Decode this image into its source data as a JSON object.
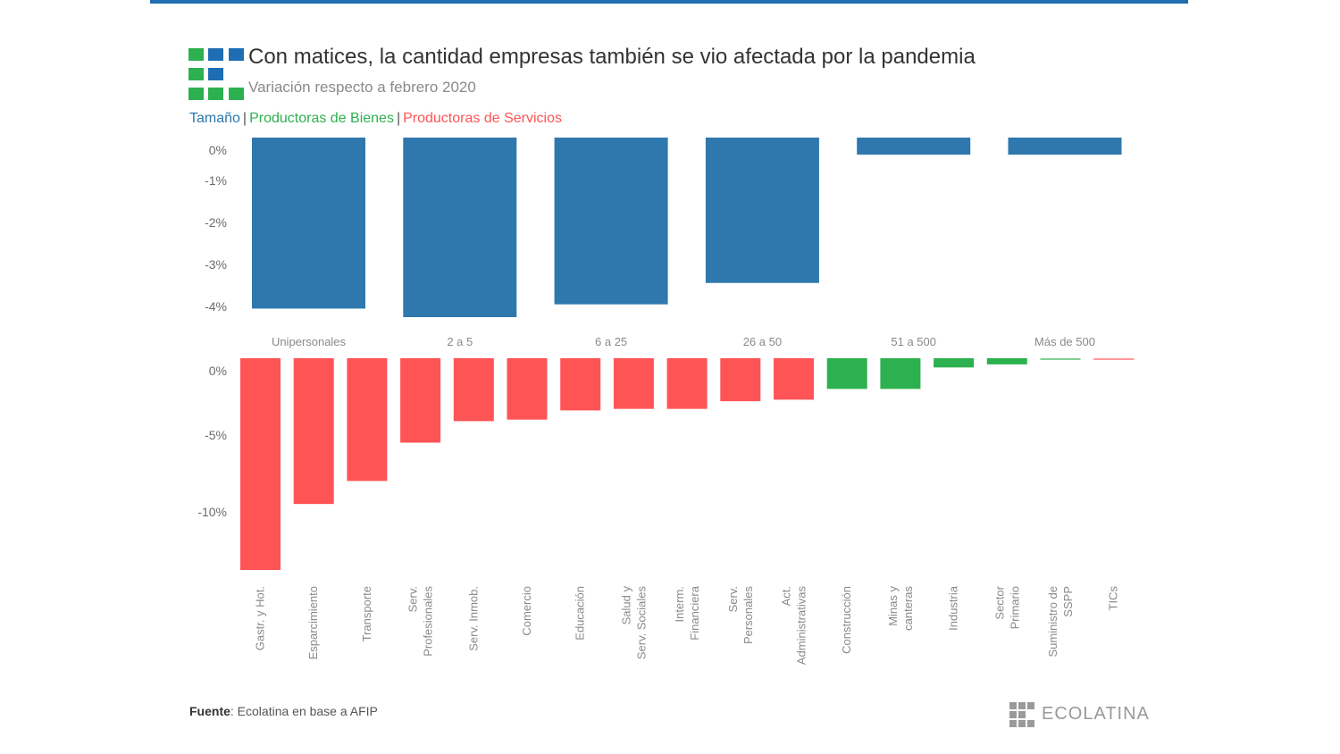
{
  "header": {
    "title": "Con matices, la cantidad empresas también se vio afectada por la pandemia",
    "subtitle": "Variación respecto a febrero 2020"
  },
  "legend": {
    "items": [
      {
        "label": "Tamaño",
        "color": "#2e78ad"
      },
      {
        "label": "Productoras de Bienes",
        "color": "#2db04f"
      },
      {
        "label": "Productoras de Servicios",
        "color": "#ff5456"
      }
    ],
    "separator": "|"
  },
  "chart_data": [
    {
      "type": "bar",
      "categories": [
        "Unipersonales",
        "2 a 5",
        "6 a 25",
        "26 a 50",
        "51 a 500",
        "Más de 500"
      ],
      "values": [
        -4.0,
        -4.2,
        -3.9,
        -3.4,
        -0.4,
        -0.4
      ],
      "yticks": [
        "0%",
        "-1%",
        "-2%",
        "-3%",
        "-4%"
      ],
      "ylim": [
        -4.3,
        0.3
      ],
      "grid": false,
      "color": "#2e78ad"
    },
    {
      "type": "bar",
      "categories": [
        "Gastr. y Hot.",
        "Esparcimiento",
        "Transporte",
        "Serv. Profesionales",
        "Serv. Inmob.",
        "Comercio",
        "Educación",
        "Salud y Serv. Sociales",
        "Interm. Financiera",
        "Serv. Personales",
        "Act. Administrativas",
        "Construcción",
        "Minas y canteras",
        "Industria",
        "Sector Primario",
        "Suministro de SSPP",
        "TICs"
      ],
      "values": [
        -13.8,
        -9.5,
        -8.0,
        -5.5,
        -4.1,
        -4.0,
        -3.4,
        -3.3,
        -3.3,
        -2.8,
        -2.7,
        -2.0,
        -2.0,
        -0.6,
        -0.4,
        -0.1,
        -0.1
      ],
      "groups": [
        "servicios",
        "servicios",
        "servicios",
        "servicios",
        "servicios",
        "servicios",
        "servicios",
        "servicios",
        "servicios",
        "servicios",
        "servicios",
        "bienes",
        "bienes",
        "bienes",
        "bienes",
        "bienes",
        "servicios"
      ],
      "yticks": [
        "0%",
        "-5%",
        "-10%"
      ],
      "ylim": [
        -14,
        1
      ],
      "grid": false,
      "colors": {
        "servicios": "#ff5456",
        "bienes": "#2db04f"
      }
    }
  ],
  "footer": {
    "source_label": "Fuente",
    "source_text": ": Ecolatina en base a AFIP",
    "brand": "ECOLATINA"
  }
}
